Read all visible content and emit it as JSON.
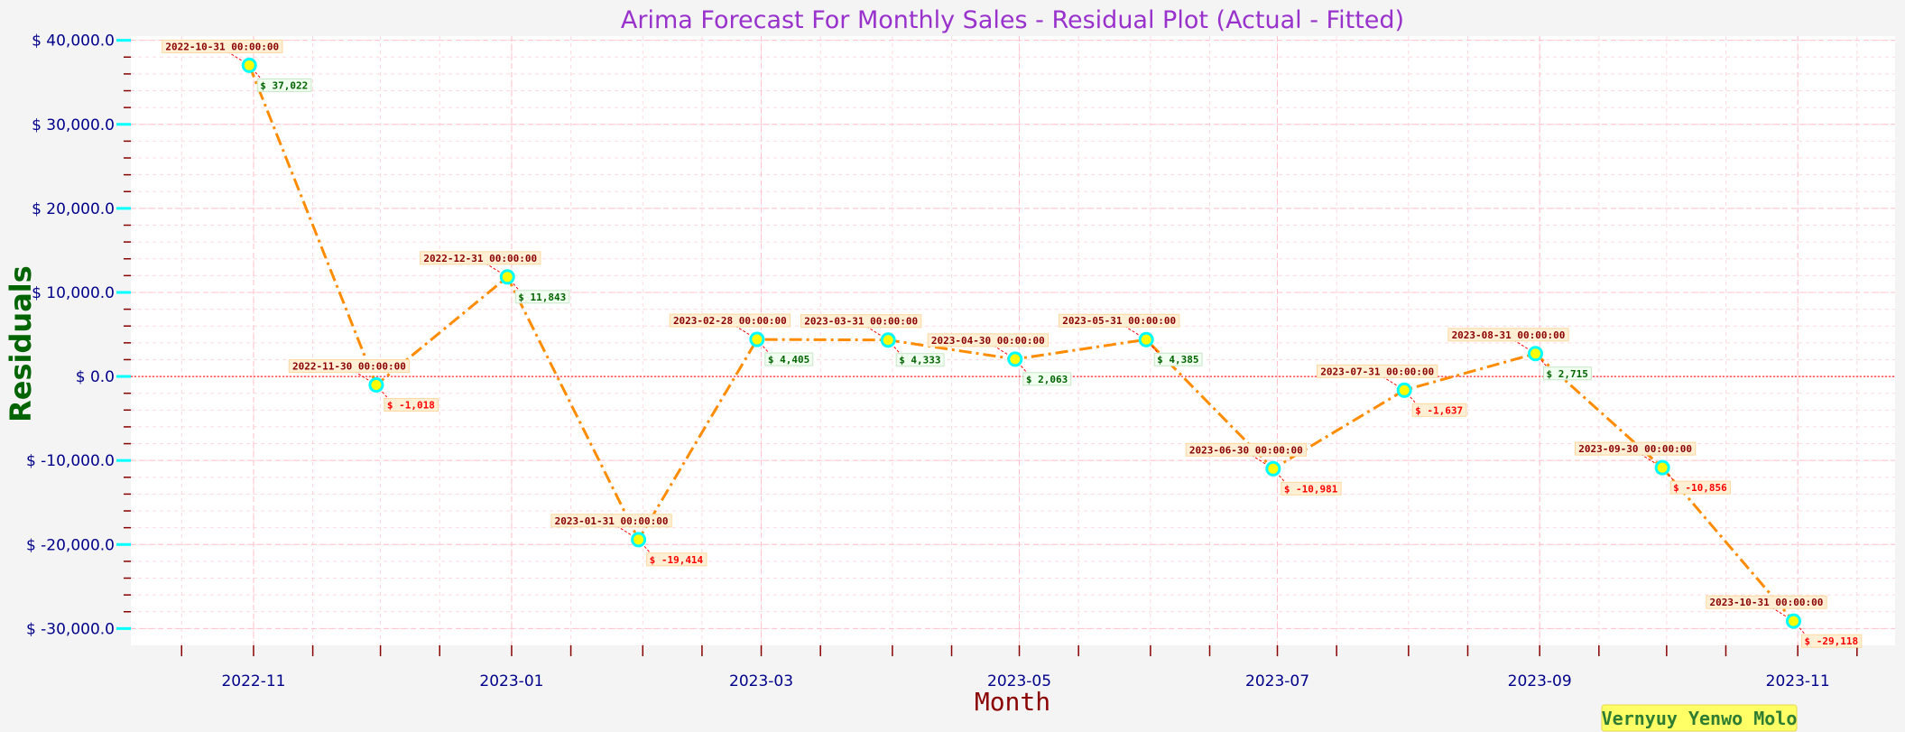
{
  "chart_data": {
    "type": "line",
    "title": "Arima Forecast For Monthly Sales - Residual Plot (Actual - Fitted)",
    "xlabel": "Month",
    "ylabel": "Residuals",
    "ylim": [
      -32000,
      40500
    ],
    "xlim": [
      "2022-10-03",
      "2023-11-24"
    ],
    "grid": true,
    "zero_line": true,
    "x_ticks": [
      "2022-11",
      "2023-01",
      "2023-03",
      "2023-05",
      "2023-07",
      "2023-09",
      "2023-11"
    ],
    "y_ticks": [
      "$ 40,000.0",
      "$ 30,000.0",
      "$ 20,000.0",
      "$ 10,000.0",
      "$ 0.0",
      "$ -10,000.0",
      "$ -20,000.0",
      "$ -30,000.0"
    ],
    "series": [
      {
        "x": [
          "2022-10-31 00:00:00",
          "2022-11-30 00:00:00",
          "2022-12-31 00:00:00",
          "2023-01-31 00:00:00",
          "2023-02-28 00:00:00",
          "2023-03-31 00:00:00",
          "2023-04-30 00:00:00",
          "2023-05-31 00:00:00",
          "2023-06-30 00:00:00",
          "2023-07-31 00:00:00",
          "2023-08-31 00:00:00",
          "2023-09-30 00:00:00",
          "2023-10-31 00:00:00"
        ],
        "values": [
          37022,
          -1018,
          11843,
          -19414,
          4405,
          4333,
          2063,
          4385,
          -10981,
          -1637,
          2715,
          -10856,
          -29118
        ],
        "value_labels": [
          "$ 37,022",
          "$ -1,018",
          "$ 11,843",
          "$ -19,414",
          "$ 4,405",
          "$ 4,333",
          "$ 2,063",
          "$ 4,385",
          "$ -10,981",
          "$ -1,637",
          "$ 2,715",
          "$ -10,856",
          "$ -29,118"
        ]
      }
    ],
    "colors": {
      "line": "#ff8c00",
      "marker_fill": "#ffff00",
      "marker_edge": "#00ffff",
      "grid": "#ffc0cb",
      "zero_line": "#ff0000",
      "title": "#9932cc",
      "ylabel": "#006400",
      "xlabel": "#8b0000",
      "tick_labels": "#00008b",
      "major_tick": "#00ffff",
      "minor_tick": "#8b0000"
    }
  },
  "watermark": "Vernyuy Yenwo Molo"
}
